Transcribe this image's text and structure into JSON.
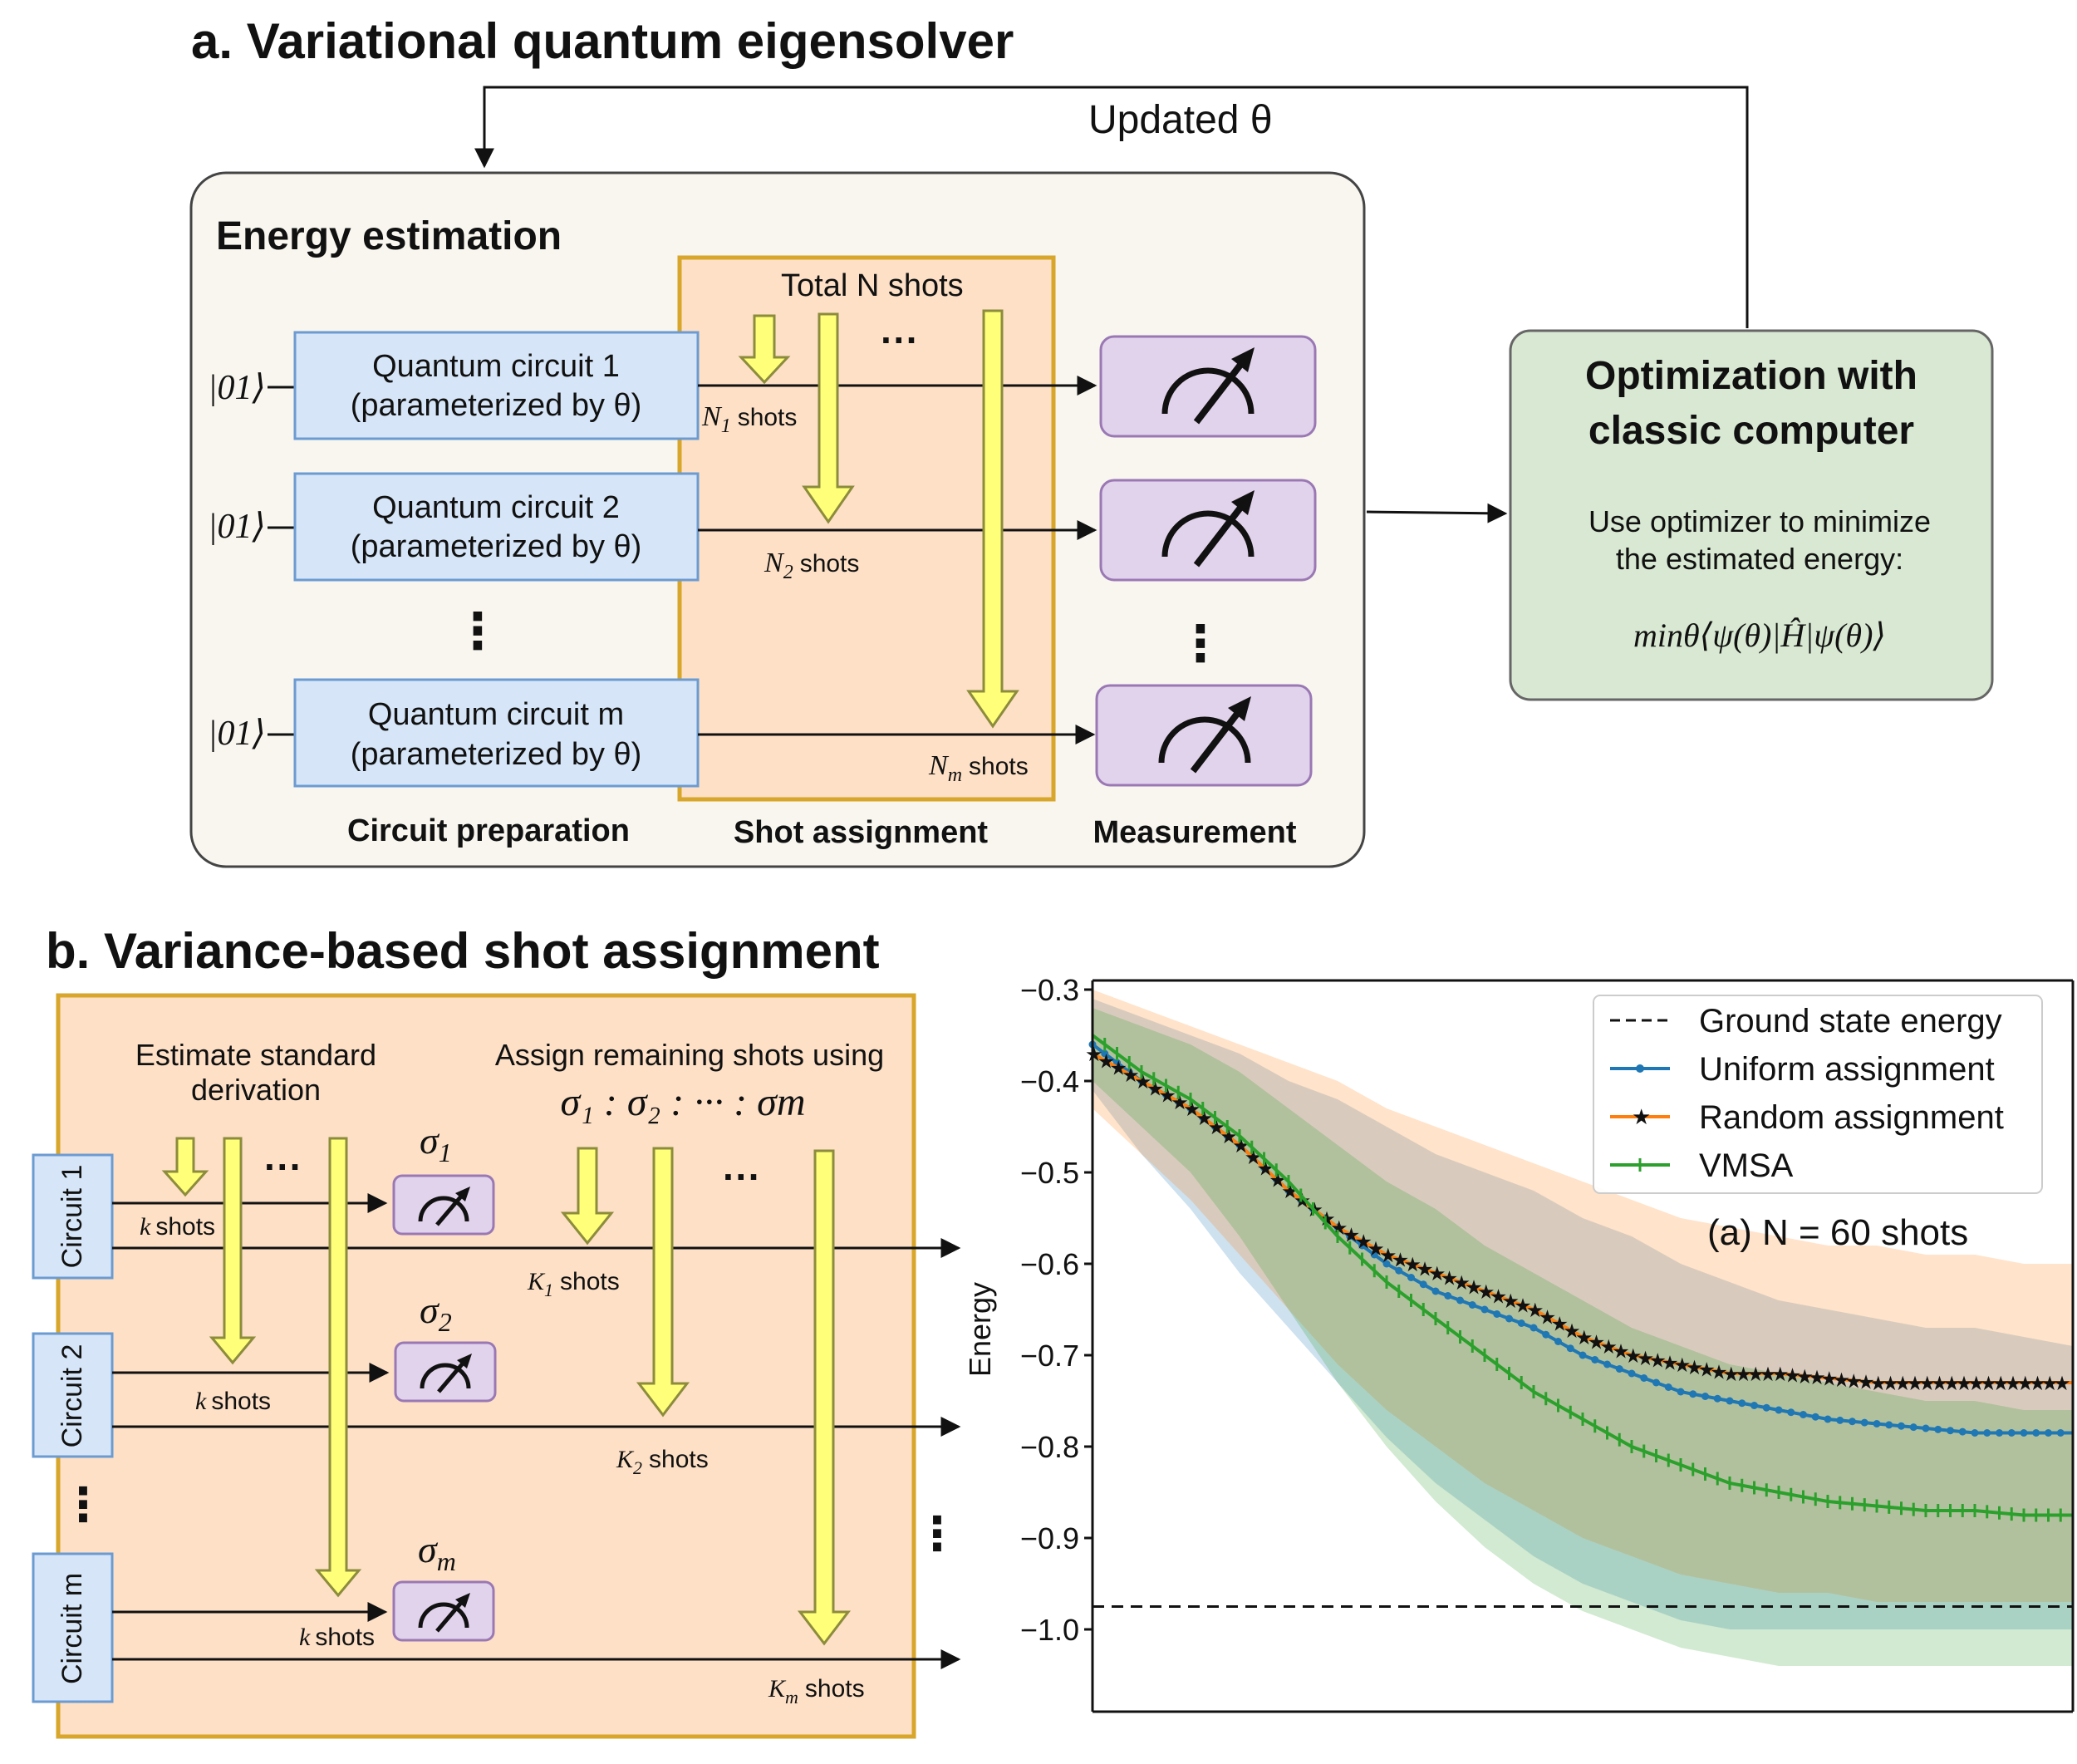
{
  "panel_a": {
    "title": "a. Variational quantum eigensolver",
    "feedback_label": "Updated θ",
    "energy_box_title": "Energy estimation",
    "total_shots_label": "Total N shots",
    "ellipsis_h": "···",
    "ellipsis_v": "⋮",
    "circuits": [
      {
        "input": "|01⟩",
        "line1": "Quantum circuit 1",
        "line2": "(parameterized by θ)",
        "shots_var": "N",
        "shots_sub": "1",
        "shots_word": "shots"
      },
      {
        "input": "|01⟩",
        "line1": "Quantum circuit 2",
        "line2": "(parameterized by θ)",
        "shots_var": "N",
        "shots_sub": "2",
        "shots_word": "shots"
      },
      {
        "input": "|01⟩",
        "line1": "Quantum circuit m",
        "line2": "(parameterized by θ)",
        "shots_var": "N",
        "shots_sub": "m",
        "shots_word": "shots"
      }
    ],
    "section_labels": {
      "circuit_prep": "Circuit preparation",
      "shot_assignment": "Shot assignment",
      "measurement": "Measurement"
    },
    "optimizer": {
      "title_line1": "Optimization with",
      "title_line2": "classic computer",
      "desc_line1": "Use optimizer to minimize",
      "desc_line2": "the estimated energy:",
      "formula": "minθ⟨ψ(θ)|Ĥ|ψ(θ)⟩"
    },
    "colors": {
      "energy_box_bg": "#f8f6ef",
      "shot_region_bg": "#fde0c6",
      "shot_region_border": "#d7a62b",
      "circuit_bg": "#d6e6f8",
      "circuit_border": "#6c9bd2",
      "meas_bg": "#e2d3ec",
      "meas_border": "#9a78b4",
      "arrow_fill": "#ffff7a",
      "arrow_stroke": "#8c8c3c",
      "optimizer_bg": "#d8e8d2",
      "optimizer_border": "#666666"
    }
  },
  "panel_b": {
    "title": "b. Variance-based shot assignment",
    "estimate_line1": "Estimate standard",
    "estimate_line2": "derivation",
    "assign_line1": "Assign remaining shots using",
    "assign_ratio": "σ₁ : σ₂ : ··· : σm",
    "circuits": [
      {
        "label": "Circuit 1",
        "sigma": "σ",
        "sigma_sub": "1",
        "k_label": "k shots",
        "K_var": "K",
        "K_sub": "1",
        "shots_word": "shots"
      },
      {
        "label": "Circuit 2",
        "sigma": "σ",
        "sigma_sub": "2",
        "k_label": "k shots",
        "K_var": "K",
        "K_sub": "2",
        "shots_word": "shots"
      },
      {
        "label": "Circuit m",
        "sigma": "σ",
        "sigma_sub": "m",
        "k_label": "k shots",
        "K_var": "K",
        "K_sub": "m",
        "shots_word": "shots"
      }
    ],
    "k_word": "k",
    "colors": {
      "region_bg": "#fde0c6",
      "region_border": "#d7a62b",
      "circuit_bg": "#d6e6f8",
      "circuit_border": "#6c9bd2",
      "meas_bg": "#e2d3ec",
      "meas_border": "#9a78b4"
    }
  },
  "chart_data": {
    "type": "line",
    "title": "",
    "annotation": "(a) N = 60 shots",
    "xlabel": "",
    "ylabel": "Energy",
    "ylim": [
      -1.09,
      -0.29
    ],
    "yticks": [
      -0.3,
      -0.4,
      -0.5,
      -0.6,
      -0.7,
      -0.8,
      -0.9,
      -1.0
    ],
    "ytick_labels": [
      "−0.3",
      "−0.4",
      "−0.5",
      "−0.6",
      "−0.7",
      "−0.8",
      "−0.9",
      "−1.0"
    ],
    "x_range": [
      0,
      200
    ],
    "ground_state_energy": -0.975,
    "legend_position": "top-right",
    "legend": [
      "Ground state energy",
      "Uniform assignment",
      "Random assignment",
      "VMSA"
    ],
    "series": [
      {
        "name": "Uniform assignment",
        "color": "#1f77b4",
        "marker": "dot",
        "x": [
          0,
          10,
          20,
          30,
          40,
          50,
          60,
          70,
          80,
          90,
          100,
          110,
          120,
          130,
          140,
          150,
          160,
          170,
          180,
          190,
          200
        ],
        "y": [
          -0.36,
          -0.4,
          -0.43,
          -0.47,
          -0.52,
          -0.56,
          -0.6,
          -0.63,
          -0.65,
          -0.67,
          -0.7,
          -0.72,
          -0.74,
          -0.75,
          -0.76,
          -0.77,
          -0.775,
          -0.78,
          -0.785,
          -0.785,
          -0.785
        ],
        "band_upper": [
          -0.31,
          -0.33,
          -0.35,
          -0.37,
          -0.4,
          -0.42,
          -0.45,
          -0.48,
          -0.5,
          -0.52,
          -0.55,
          -0.57,
          -0.6,
          -0.62,
          -0.64,
          -0.65,
          -0.66,
          -0.67,
          -0.67,
          -0.68,
          -0.69
        ],
        "band_lower": [
          -0.41,
          -0.48,
          -0.54,
          -0.61,
          -0.67,
          -0.73,
          -0.79,
          -0.84,
          -0.88,
          -0.92,
          -0.95,
          -0.97,
          -0.99,
          -1.0,
          -1.0,
          -1.0,
          -1.0,
          -1.0,
          -1.0,
          -1.0,
          -1.0
        ]
      },
      {
        "name": "Random assignment",
        "color": "#ff7f0e",
        "marker": "star",
        "x": [
          0,
          10,
          20,
          30,
          40,
          50,
          60,
          70,
          80,
          90,
          100,
          110,
          120,
          130,
          140,
          150,
          160,
          170,
          180,
          190,
          200
        ],
        "y": [
          -0.37,
          -0.4,
          -0.43,
          -0.47,
          -0.52,
          -0.56,
          -0.59,
          -0.61,
          -0.63,
          -0.65,
          -0.68,
          -0.7,
          -0.71,
          -0.72,
          -0.72,
          -0.725,
          -0.73,
          -0.73,
          -0.73,
          -0.73,
          -0.73
        ],
        "band_upper": [
          -0.3,
          -0.32,
          -0.34,
          -0.36,
          -0.38,
          -0.4,
          -0.43,
          -0.45,
          -0.47,
          -0.49,
          -0.51,
          -0.53,
          -0.55,
          -0.56,
          -0.57,
          -0.58,
          -0.58,
          -0.59,
          -0.59,
          -0.6,
          -0.6
        ],
        "band_lower": [
          -0.43,
          -0.48,
          -0.53,
          -0.59,
          -0.65,
          -0.71,
          -0.76,
          -0.8,
          -0.84,
          -0.87,
          -0.9,
          -0.92,
          -0.94,
          -0.95,
          -0.96,
          -0.96,
          -0.97,
          -0.97,
          -0.97,
          -0.97,
          -0.97
        ]
      },
      {
        "name": "VMSA",
        "color": "#2ca02c",
        "marker": "plus",
        "x": [
          0,
          10,
          20,
          30,
          40,
          50,
          60,
          70,
          80,
          90,
          100,
          110,
          120,
          130,
          140,
          150,
          160,
          170,
          180,
          190,
          200
        ],
        "y": [
          -0.35,
          -0.39,
          -0.42,
          -0.46,
          -0.51,
          -0.57,
          -0.62,
          -0.66,
          -0.7,
          -0.74,
          -0.77,
          -0.8,
          -0.82,
          -0.84,
          -0.85,
          -0.86,
          -0.865,
          -0.87,
          -0.87,
          -0.875,
          -0.875
        ],
        "band_upper": [
          -0.32,
          -0.34,
          -0.36,
          -0.39,
          -0.43,
          -0.47,
          -0.51,
          -0.54,
          -0.58,
          -0.61,
          -0.64,
          -0.67,
          -0.69,
          -0.71,
          -0.72,
          -0.73,
          -0.74,
          -0.75,
          -0.75,
          -0.76,
          -0.76
        ],
        "band_lower": [
          -0.4,
          -0.45,
          -0.5,
          -0.57,
          -0.65,
          -0.73,
          -0.8,
          -0.86,
          -0.91,
          -0.95,
          -0.98,
          -1.0,
          -1.02,
          -1.03,
          -1.04,
          -1.04,
          -1.04,
          -1.04,
          -1.04,
          -1.04,
          -1.04
        ]
      }
    ]
  }
}
